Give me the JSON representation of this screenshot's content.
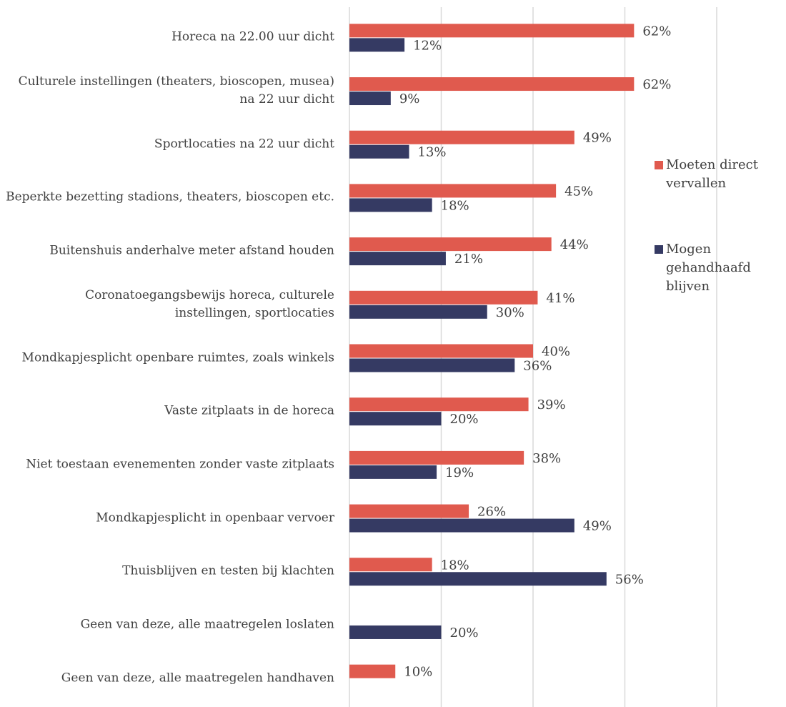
{
  "chart_data": {
    "type": "bar",
    "orientation": "horizontal",
    "categories": [
      "Horeca na 22.00 uur dicht",
      "Culturele instellingen (theaters, bioscopen, musea) na 22 uur dicht",
      "Sportlocaties na 22 uur dicht",
      "Beperkte bezetting stadions, theaters, bioscopen etc.",
      "Buitenshuis anderhalve meter afstand houden",
      "Coronatoegangsbewijs horeca, culturele instellingen, sportlocaties",
      "Mondkapjesplicht openbare ruimtes, zoals winkels",
      "Vaste zitplaats in de horeca",
      "Niet toestaan evenementen zonder vaste zitplaats",
      "Mondkapjesplicht in openbaar vervoer",
      "Thuisblijven en testen bij klachten",
      "Geen van deze, alle maatregelen loslaten",
      "Geen van deze, alle maatregelen handhaven"
    ],
    "series": [
      {
        "name": "Moeten direct vervallen",
        "color": "#e05a4e",
        "values": [
          62,
          62,
          49,
          45,
          44,
          41,
          40,
          39,
          38,
          26,
          18,
          null,
          10
        ],
        "value_labels": [
          "62%",
          "62%",
          "49%",
          "45%",
          "44%",
          "41%",
          "40%",
          "39%",
          "38%",
          "26%",
          "18%",
          null,
          "10%"
        ]
      },
      {
        "name": "Mogen gehandhaafd blijven",
        "color": "#353a63",
        "values": [
          12,
          9,
          13,
          18,
          21,
          30,
          36,
          20,
          19,
          49,
          56,
          20,
          null
        ],
        "value_labels": [
          "12%",
          "9%",
          "13%",
          "18%",
          "21%",
          "30%",
          "36%",
          "20%",
          "19%",
          "49%",
          "56%",
          "20%",
          null
        ]
      }
    ],
    "xlim": [
      0,
      80
    ],
    "xticks": [
      0,
      20,
      40,
      60,
      80
    ],
    "grid": true,
    "legend": "right"
  }
}
